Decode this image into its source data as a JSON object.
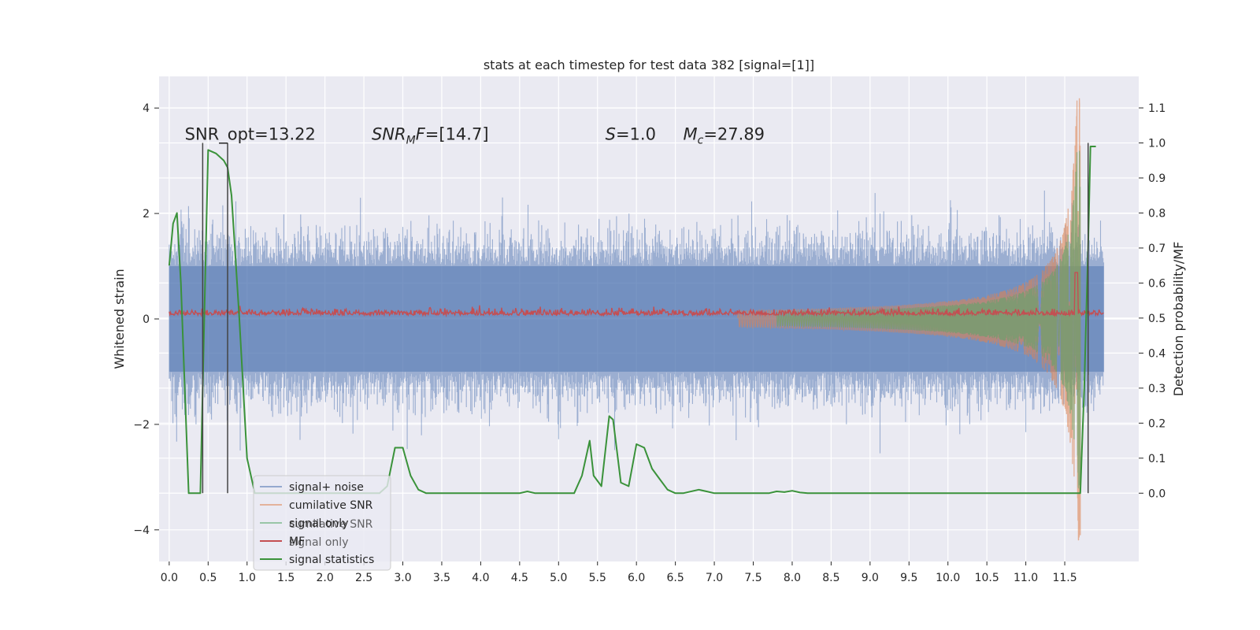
{
  "chart_data": {
    "type": "line",
    "title": "stats at each timestep for test data 382 [signal=[1]]",
    "xlabel": "",
    "ylabel": "Whitened strain",
    "ylabel_right": "Detection probability/MF",
    "xlim": [
      -0.13,
      12.45
    ],
    "ylim": [
      -4.6,
      4.6
    ],
    "ylim_right": [
      -0.195,
      1.19
    ],
    "x_ticks": [
      0.0,
      0.5,
      1.0,
      1.5,
      2.0,
      2.5,
      3.0,
      3.5,
      4.0,
      4.5,
      5.0,
      5.5,
      6.0,
      6.5,
      7.0,
      7.5,
      8.0,
      8.5,
      9.0,
      9.5,
      10.0,
      10.5,
      11.0,
      11.5
    ],
    "x_tick_labels": [
      "0.0",
      "0.5",
      "1.0",
      "1.5",
      "2.0",
      "2.5",
      "3.0",
      "3.5",
      "4.0",
      "4.5",
      "5.0",
      "5.5",
      "6.0",
      "6.5",
      "7.0",
      "7.5",
      "8.0",
      "8.5",
      "9.0",
      "9.5",
      "10.0",
      "10.5",
      "11.0",
      "11.5"
    ],
    "y_ticks": [
      4,
      2,
      0,
      -2,
      -4
    ],
    "y_tick_labels": [
      "4",
      "2",
      "0",
      "−2",
      "−4"
    ],
    "y_ticks_right": [
      1.1,
      1.0,
      0.9,
      0.8,
      0.7,
      0.6,
      0.5,
      0.4,
      0.3,
      0.2,
      0.1,
      0.0
    ],
    "y_tick_labels_right": [
      "1.1",
      "1.0",
      "0.9",
      "0.8",
      "0.7",
      "0.6",
      "0.5",
      "0.4",
      "0.3",
      "0.2",
      "0.1",
      "0.0"
    ],
    "grid": true,
    "legend_position": "lower-left",
    "series": [
      {
        "name": "signal+ noise",
        "color": "#4c72b0",
        "axis": "left",
        "style": "dense noise",
        "t_range": [
          0.0,
          12.0
        ],
        "envelope": 1.4,
        "peak_abs": 4.1
      },
      {
        "name": "cumilative SNR",
        "color": "#dd8452",
        "axis": "left",
        "style": "chirp",
        "t_range": [
          7.3,
          11.7
        ],
        "peak_abs": 4.2
      },
      {
        "name": "signal only",
        "color": "#55a868",
        "axis": "left",
        "style": "chirp",
        "t_range": [
          7.8,
          11.7
        ],
        "peak_abs": 3.2
      },
      {
        "name": "MF",
        "color": "#c44e52",
        "axis": "right",
        "baseline": 0.5,
        "spike": {
          "x": 11.65,
          "y": 0.63
        }
      },
      {
        "name": "signal statistics",
        "color": "#3a923a",
        "axis": "right",
        "x": [
          0.0,
          0.05,
          0.1,
          0.15,
          0.2,
          0.25,
          0.3,
          0.4,
          0.45,
          0.5,
          0.6,
          0.7,
          0.75,
          0.8,
          0.9,
          1.0,
          1.1,
          1.2,
          2.5,
          2.7,
          2.8,
          2.9,
          3.0,
          3.1,
          3.2,
          3.3,
          3.4,
          4.5,
          4.6,
          4.7,
          5.2,
          5.3,
          5.4,
          5.45,
          5.55,
          5.65,
          5.7,
          5.8,
          5.9,
          6.0,
          6.1,
          6.2,
          6.3,
          6.4,
          6.5,
          6.6,
          6.8,
          6.9,
          7.0,
          7.1,
          7.2,
          7.7,
          7.8,
          7.9,
          8.0,
          8.1,
          8.2,
          11.5,
          11.7,
          11.75,
          11.8,
          11.83,
          11.86,
          11.9
        ],
        "y": [
          0.65,
          0.77,
          0.8,
          0.6,
          0.3,
          0.0,
          0.0,
          0.0,
          0.5,
          0.98,
          0.97,
          0.95,
          0.93,
          0.85,
          0.5,
          0.1,
          0.0,
          0.0,
          0.0,
          0.0,
          0.02,
          0.13,
          0.13,
          0.05,
          0.01,
          0.0,
          0.0,
          0.0,
          0.005,
          0.0,
          0.0,
          0.05,
          0.15,
          0.05,
          0.02,
          0.22,
          0.21,
          0.03,
          0.02,
          0.14,
          0.13,
          0.07,
          0.04,
          0.01,
          0.0,
          0.0,
          0.01,
          0.005,
          0.0,
          0.0,
          0.0,
          0.0,
          0.005,
          0.003,
          0.007,
          0.002,
          0.0,
          0.0,
          0.0,
          0.3,
          0.7,
          0.99,
          0.99,
          0.99
        ]
      }
    ],
    "vertical_lines": [
      0.43,
      0.75,
      11.8
    ],
    "annotations": [
      {
        "text": "SNR_opt=13.22",
        "x": 0.2,
        "y": 3.4
      },
      {
        "text": "SNR",
        "sub": "M",
        "rest": "F=[14.7]",
        "x": 2.6,
        "y": 3.4
      },
      {
        "text": "S",
        "rest": "=1.0",
        "x": 5.6,
        "y": 3.4
      },
      {
        "text": "M",
        "sub": "c",
        "rest": "=27.89",
        "x": 6.6,
        "y": 3.4
      }
    ],
    "legend": [
      "signal+ noise",
      "cumilative SNR",
      "signal only",
      "MF",
      "signal statistics"
    ],
    "legend_ghost": [
      "cumilative SNR",
      "signal only"
    ]
  }
}
